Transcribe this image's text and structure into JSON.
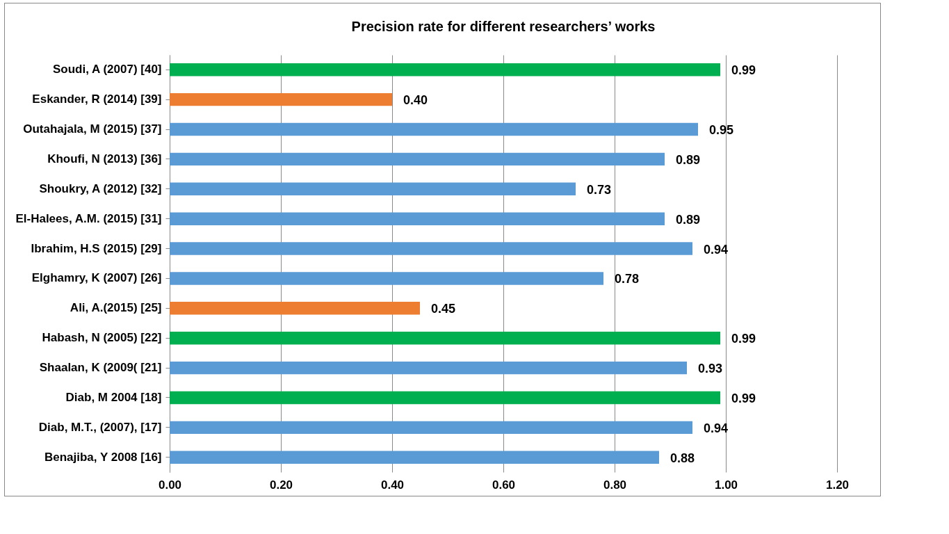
{
  "chart_data": {
    "type": "bar",
    "orientation": "horizontal",
    "title": "Precision rate for different researchers’ works",
    "categories": [
      "Soudi, A (2007) [40]",
      "Eskander, R (2014) [39]",
      "Outahajala, M (2015) [37]",
      "Khoufi, N (2013) [36]",
      "Shoukry, A (2012) [32]",
      "El-Halees, A.M. (2015) [31]",
      "Ibrahim, H.S (2015) [29]",
      "Elghamry, K (2007) [26]",
      "Ali, A.(2015) [25]",
      "Habash, N (2005) [22]",
      "Shaalan, K (2009( [21]",
      "Diab, M 2004 [18]",
      "Diab, M.T., (2007), [17]",
      "Benajiba, Y 2008 [16]"
    ],
    "values": [
      0.99,
      0.4,
      0.95,
      0.89,
      0.73,
      0.89,
      0.94,
      0.78,
      0.45,
      0.99,
      0.93,
      0.99,
      0.94,
      0.88
    ],
    "value_labels": [
      "0.99",
      "0.40",
      "0.95",
      "0.89",
      "0.73",
      "0.89",
      "0.94",
      "0.78",
      "0.45",
      "0.99",
      "0.93",
      "0.99",
      "0.94",
      "0.88"
    ],
    "colors": [
      "#00b050",
      "#ed7d31",
      "#5b9bd5",
      "#5b9bd5",
      "#5b9bd5",
      "#5b9bd5",
      "#5b9bd5",
      "#5b9bd5",
      "#ed7d31",
      "#00b050",
      "#5b9bd5",
      "#00b050",
      "#5b9bd5",
      "#5b9bd5"
    ],
    "xlim": [
      0,
      1.2
    ],
    "xticks": [
      {
        "value": 0,
        "label": "0.00"
      },
      {
        "value": 0.2,
        "label": "0.20"
      },
      {
        "value": 0.4,
        "label": "0.40"
      },
      {
        "value": 0.6,
        "label": "0.60"
      },
      {
        "value": 0.8,
        "label": "0.80"
      },
      {
        "value": 1,
        "label": "1.00"
      },
      {
        "value": 1.2,
        "label": "1.20"
      }
    ],
    "grid": "x"
  }
}
